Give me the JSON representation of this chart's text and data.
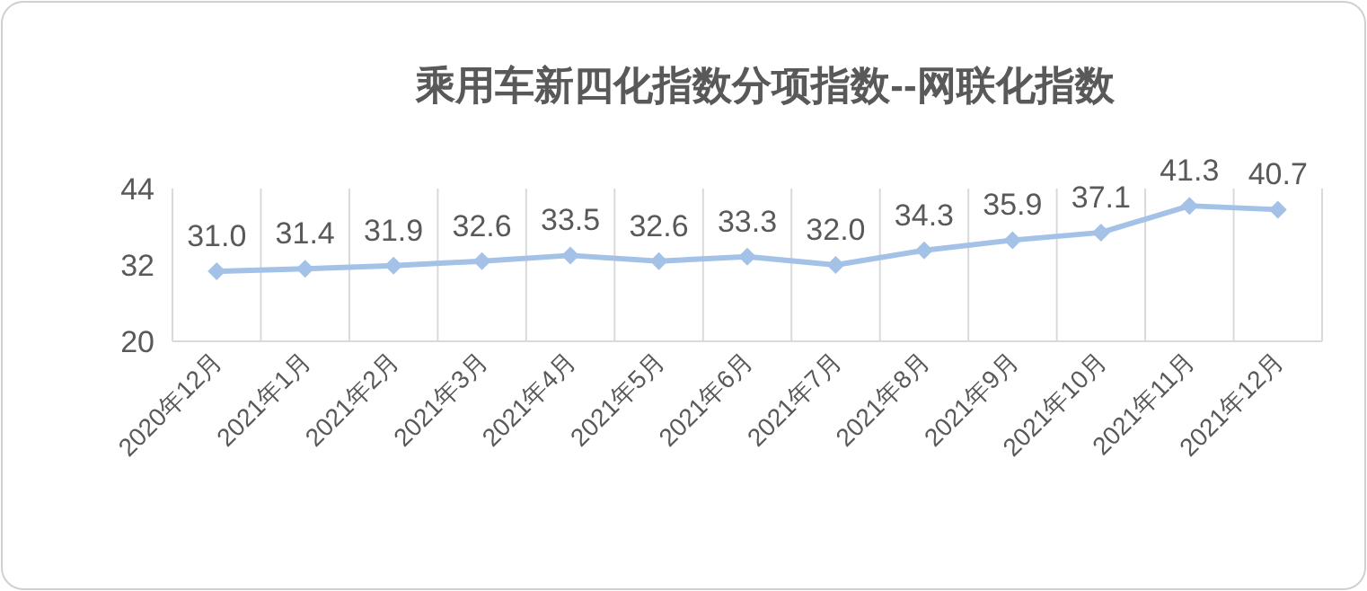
{
  "chart_data": {
    "type": "line",
    "title": "乘用车新四化指数分项指数--网联化指数",
    "categories": [
      "2020年12月",
      "2021年1月",
      "2021年2月",
      "2021年3月",
      "2021年4月",
      "2021年5月",
      "2021年6月",
      "2021年7月",
      "2021年8月",
      "2021年9月",
      "2021年10月",
      "2021年11月",
      "2021年12月"
    ],
    "values": [
      31.0,
      31.4,
      31.9,
      32.6,
      33.5,
      32.6,
      33.3,
      32.0,
      34.3,
      35.9,
      37.1,
      41.3,
      40.7
    ],
    "value_labels": [
      "31.0",
      "31.4",
      "31.9",
      "32.6",
      "33.5",
      "32.6",
      "33.3",
      "32.0",
      "34.3",
      "35.9",
      "37.1",
      "41.3",
      "40.7"
    ],
    "color": "#a4c2e8",
    "ylim": [
      20,
      44
    ],
    "yticks": [
      20,
      32,
      44
    ],
    "grid": "x",
    "marker": "diamond",
    "line_style": "solid",
    "data_labels": true
  }
}
